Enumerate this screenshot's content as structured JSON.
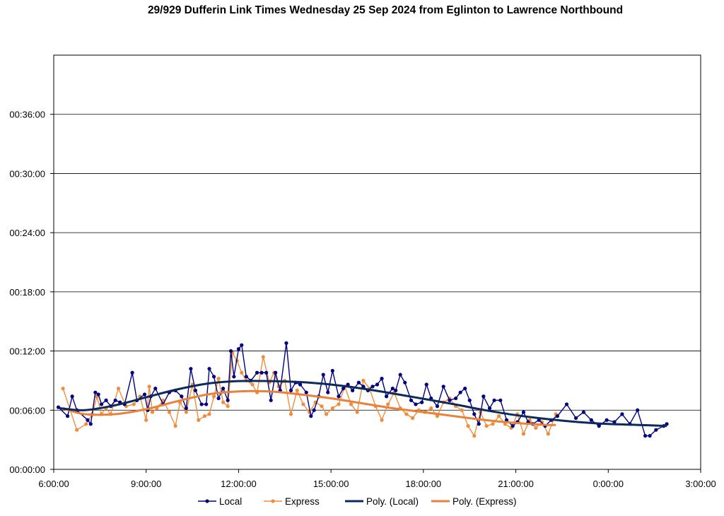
{
  "chart_data": {
    "type": "line",
    "title": "29/929 Dufferin Link Times Wednesday 25 Sep 2024 from Eglinton to Lawrence Northbound",
    "xlabel": "",
    "ylabel": "",
    "x_unit": "hours since midnight (values above 24 = after midnight)",
    "y_unit": "minutes",
    "xlim": [
      6,
      27
    ],
    "ylim": [
      0,
      42
    ],
    "x_ticks": [
      6,
      9,
      12,
      15,
      18,
      21,
      24,
      27
    ],
    "x_tick_labels": [
      "6:00:00",
      "9:00:00",
      "12:00:00",
      "15:00:00",
      "18:00:00",
      "21:00:00",
      "0:00:00",
      "3:00:00"
    ],
    "y_ticks": [
      0,
      6,
      12,
      18,
      24,
      30,
      36
    ],
    "y_tick_labels": [
      "00:00:00",
      "00:06:00",
      "00:12:00",
      "00:18:00",
      "00:24:00",
      "00:30:00",
      "00:36:00"
    ],
    "grid": "horizontal",
    "legend_position": "bottom",
    "colors": {
      "local": "#000080",
      "express": "#F08C3C",
      "poly_local": "#0C2A5A",
      "poly_express": "#E8823A"
    },
    "legend": [
      "Local",
      "Express",
      "Poly. (Local)",
      "Poly. (Express)"
    ],
    "series": [
      {
        "name": "Local",
        "x": [
          6.15,
          6.45,
          6.6,
          6.75,
          7.1,
          7.2,
          7.35,
          7.45,
          7.55,
          7.7,
          7.85,
          8.0,
          8.15,
          8.3,
          8.55,
          8.7,
          8.95,
          9.05,
          9.15,
          9.3,
          9.55,
          9.75,
          9.95,
          10.15,
          10.3,
          10.45,
          10.6,
          10.8,
          10.95,
          11.05,
          11.2,
          11.35,
          11.5,
          11.65,
          11.75,
          11.85,
          12.0,
          12.1,
          12.25,
          12.4,
          12.6,
          12.75,
          12.9,
          13.05,
          13.2,
          13.35,
          13.55,
          13.7,
          13.85,
          14.0,
          14.2,
          14.35,
          14.45,
          14.6,
          14.75,
          14.9,
          15.05,
          15.25,
          15.4,
          15.55,
          15.7,
          15.9,
          16.05,
          16.2,
          16.35,
          16.5,
          16.65,
          16.8,
          17.0,
          17.1,
          17.25,
          17.4,
          17.6,
          17.75,
          17.95,
          18.1,
          18.25,
          18.45,
          18.65,
          18.85,
          19.05,
          19.2,
          19.35,
          19.5,
          19.65,
          19.8,
          19.95,
          20.15,
          20.3,
          20.5,
          20.7,
          20.9,
          21.05,
          21.25,
          21.4,
          21.55,
          21.75,
          21.95,
          22.15,
          22.35,
          22.65,
          22.95,
          23.2,
          23.45,
          23.7,
          23.95,
          24.2,
          24.45,
          24.7,
          24.95,
          25.2,
          25.35,
          25.55,
          25.8,
          25.9
        ],
        "y": [
          6.3,
          5.4,
          7.4,
          6.0,
          5.0,
          4.6,
          7.8,
          7.6,
          6.6,
          7.0,
          6.4,
          7.0,
          6.8,
          6.6,
          9.8,
          7.0,
          7.6,
          6.0,
          7.4,
          8.2,
          6.6,
          7.8,
          8.0,
          7.4,
          6.2,
          10.2,
          8.0,
          6.6,
          6.6,
          10.2,
          9.4,
          7.2,
          8.2,
          7.0,
          12.0,
          9.4,
          12.2,
          12.6,
          9.4,
          9.0,
          9.8,
          9.8,
          9.8,
          7.0,
          9.8,
          8.0,
          12.8,
          8.0,
          8.8,
          8.6,
          7.8,
          5.4,
          6.0,
          7.4,
          9.6,
          7.8,
          10.0,
          7.4,
          8.2,
          8.6,
          8.0,
          8.8,
          8.4,
          8.0,
          8.4,
          8.6,
          9.2,
          7.4,
          8.2,
          8.0,
          9.6,
          8.8,
          7.0,
          6.6,
          6.8,
          8.6,
          7.2,
          6.4,
          8.4,
          7.0,
          7.2,
          7.8,
          8.2,
          7.0,
          5.6,
          4.6,
          7.4,
          6.2,
          7.0,
          7.0,
          5.0,
          4.4,
          4.8,
          5.8,
          4.8,
          4.6,
          5.0,
          4.4,
          5.0,
          5.4,
          6.6,
          5.2,
          5.8,
          5.0,
          4.4,
          5.0,
          4.8,
          5.6,
          4.6,
          6.0,
          3.4,
          3.4,
          4.0,
          4.4,
          4.6
        ]
      },
      {
        "name": "Express",
        "x": [
          6.3,
          6.75,
          7.05,
          7.25,
          7.4,
          7.55,
          7.7,
          7.85,
          8.1,
          8.35,
          8.6,
          8.8,
          9.0,
          9.1,
          9.2,
          9.35,
          9.55,
          9.75,
          9.95,
          10.1,
          10.3,
          10.5,
          10.7,
          10.9,
          11.05,
          11.2,
          11.35,
          11.5,
          11.65,
          11.8,
          11.95,
          12.1,
          12.25,
          12.45,
          12.6,
          12.8,
          13.0,
          13.15,
          13.3,
          13.5,
          13.7,
          13.9,
          14.1,
          14.3,
          14.5,
          14.7,
          14.85,
          15.05,
          15.25,
          15.45,
          15.65,
          15.85,
          16.05,
          16.25,
          16.45,
          16.65,
          16.85,
          17.05,
          17.25,
          17.45,
          17.65,
          17.85,
          18.05,
          18.25,
          18.45,
          18.65,
          18.85,
          19.05,
          19.25,
          19.45,
          19.65,
          19.85,
          20.05,
          20.25,
          20.45,
          20.65,
          20.85,
          21.05,
          21.25,
          21.45,
          21.65,
          21.85,
          22.05,
          22.3
        ],
        "y": [
          8.2,
          4.0,
          4.6,
          5.6,
          7.4,
          5.6,
          6.2,
          5.6,
          8.2,
          6.4,
          6.6,
          7.4,
          5.0,
          8.4,
          5.8,
          6.2,
          7.0,
          5.8,
          4.4,
          6.8,
          5.8,
          8.6,
          5.0,
          5.4,
          5.6,
          7.4,
          9.2,
          6.8,
          6.4,
          11.8,
          11.0,
          9.8,
          9.0,
          8.6,
          7.8,
          11.4,
          8.8,
          9.8,
          8.4,
          9.0,
          5.6,
          8.0,
          6.6,
          5.8,
          6.8,
          6.4,
          5.6,
          6.2,
          6.6,
          8.4,
          6.6,
          5.8,
          9.0,
          8.2,
          6.4,
          5.0,
          6.6,
          7.8,
          6.2,
          5.6,
          5.2,
          6.0,
          5.8,
          6.2,
          5.4,
          6.8,
          7.2,
          6.4,
          6.0,
          4.4,
          3.4,
          5.8,
          4.4,
          4.6,
          5.4,
          4.6,
          4.2,
          5.6,
          3.6,
          5.0,
          4.2,
          4.8,
          3.6,
          5.6
        ]
      },
      {
        "name": "Poly. (Local)",
        "x": [
          6.2,
          7,
          8,
          9,
          10,
          11,
          12,
          13,
          14,
          15,
          16,
          17,
          18,
          19,
          20,
          21,
          22,
          23,
          24,
          25,
          25.9
        ],
        "y": [
          6.2,
          6.0,
          6.5,
          7.3,
          8.1,
          8.7,
          8.95,
          8.95,
          8.85,
          8.6,
          8.2,
          7.7,
          7.15,
          6.6,
          6.0,
          5.5,
          5.1,
          4.8,
          4.6,
          4.5,
          4.4
        ]
      },
      {
        "name": "Poly. (Express)",
        "x": [
          6.3,
          7,
          8,
          9,
          10,
          11,
          12,
          13,
          14,
          15,
          16,
          17,
          18,
          19,
          20,
          21,
          22,
          22.3
        ],
        "y": [
          6.2,
          5.6,
          5.6,
          6.1,
          6.9,
          7.6,
          7.9,
          7.9,
          7.6,
          7.2,
          6.7,
          6.2,
          5.8,
          5.4,
          5.0,
          4.7,
          4.5,
          4.5
        ]
      }
    ]
  }
}
